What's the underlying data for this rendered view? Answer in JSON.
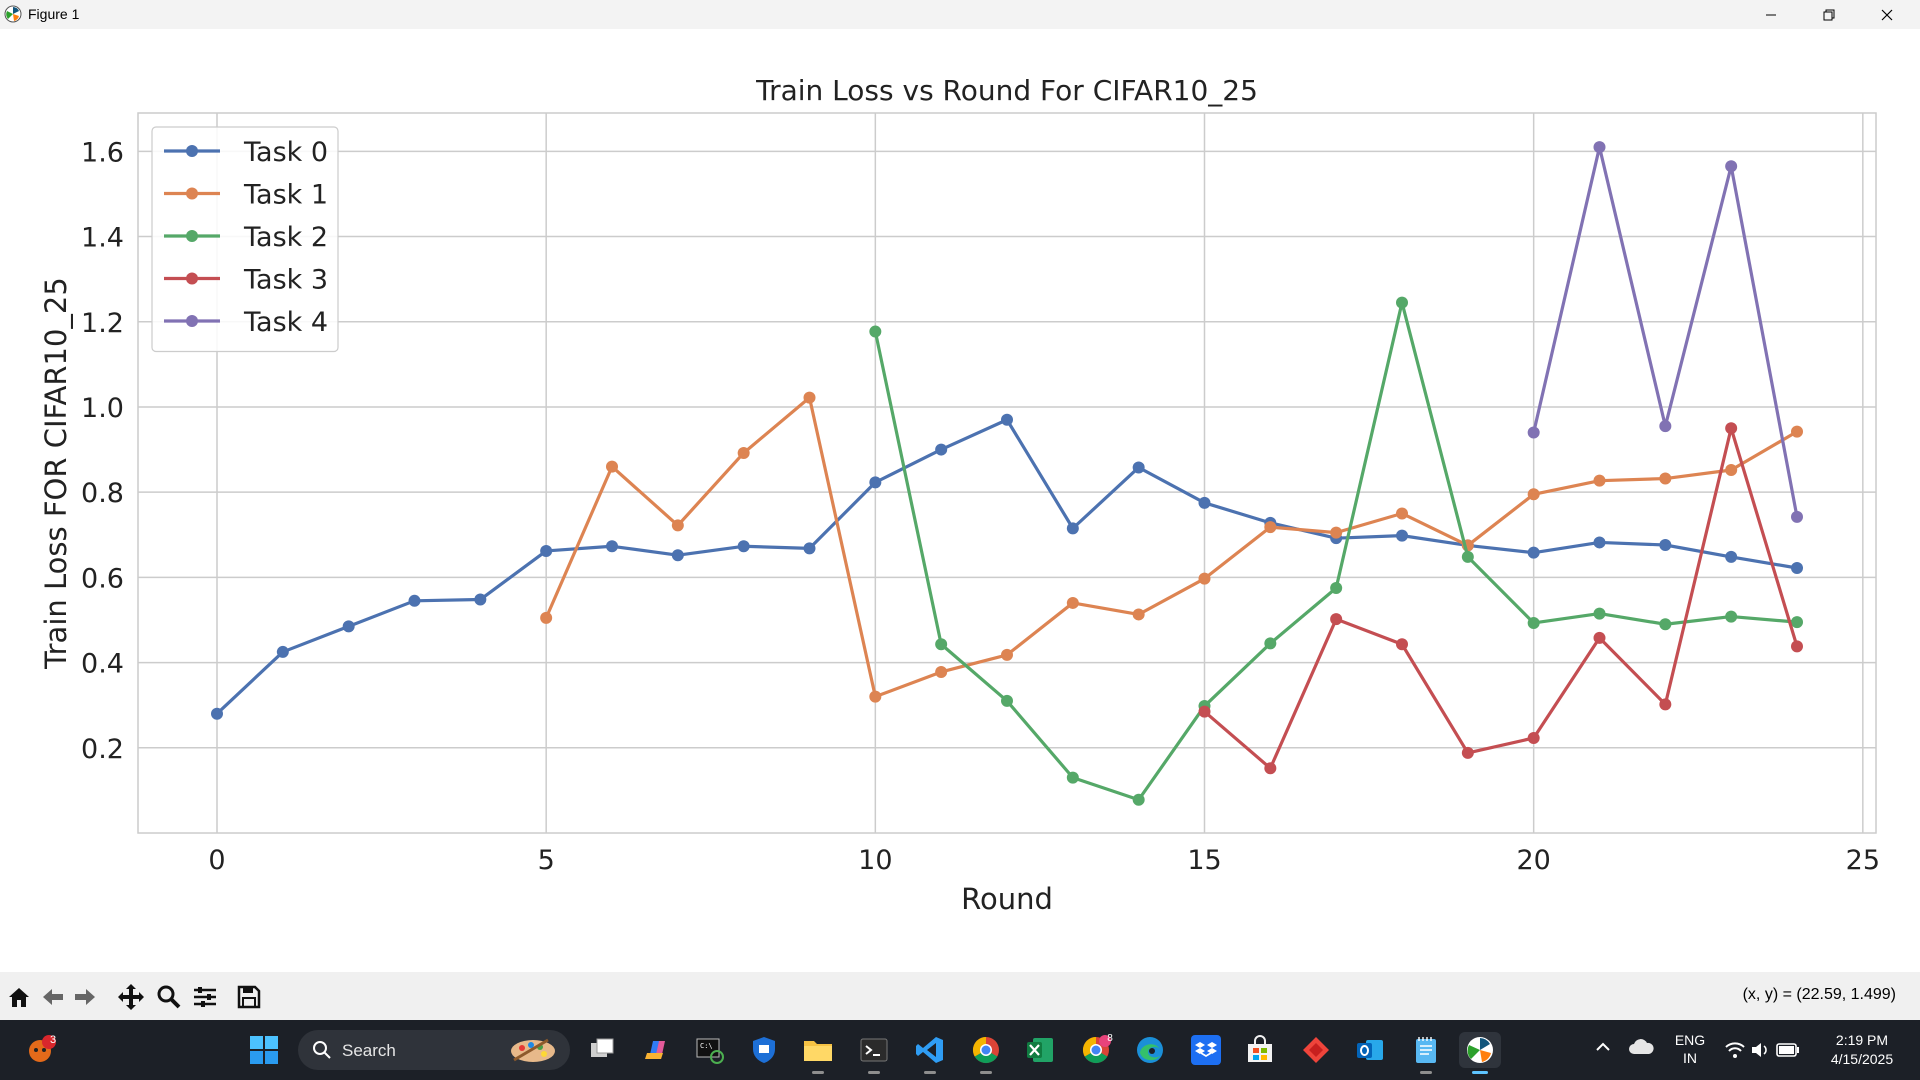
{
  "window": {
    "title": "Figure 1",
    "icon": "matplotlib-icon"
  },
  "chart_data": {
    "type": "line",
    "title": "Train Loss vs Round For CIFAR10_25",
    "xlabel": "Round",
    "ylabel": "Train Loss FOR CIFAR10_25",
    "xlim": [
      -1.2,
      25.2
    ],
    "ylim": [
      0.0,
      1.69
    ],
    "xticks": [
      0,
      5,
      10,
      15,
      20,
      25
    ],
    "yticks": [
      0.2,
      0.4,
      0.6,
      0.8,
      1.0,
      1.2,
      1.4,
      1.6
    ],
    "ytick_labels": [
      "0.2",
      "0.4",
      "0.6",
      "0.8",
      "1.0",
      "1.2",
      "1.4",
      "1.6"
    ],
    "grid": true,
    "legend_position": "top-left",
    "series": [
      {
        "name": "Task 0",
        "color": "#4c72b0",
        "x": [
          0,
          1,
          2,
          3,
          4,
          5,
          6,
          7,
          8,
          9,
          10,
          11,
          12,
          13,
          14,
          15,
          16,
          17,
          18,
          19,
          20,
          21,
          22,
          23,
          24
        ],
        "y": [
          0.28,
          0.425,
          0.485,
          0.545,
          0.548,
          0.662,
          0.673,
          0.652,
          0.673,
          0.668,
          0.823,
          0.9,
          0.97,
          0.715,
          0.858,
          0.775,
          0.728,
          0.692,
          0.698,
          0.675,
          0.658,
          0.682,
          0.676,
          0.648,
          0.622
        ]
      },
      {
        "name": "Task 1",
        "color": "#dd8452",
        "x": [
          5,
          6,
          7,
          8,
          9,
          10,
          11,
          12,
          13,
          14,
          15,
          16,
          17,
          18,
          19,
          20,
          21,
          22,
          23,
          24
        ],
        "y": [
          0.505,
          0.86,
          0.722,
          0.892,
          1.022,
          0.32,
          0.378,
          0.418,
          0.54,
          0.513,
          0.597,
          0.718,
          0.705,
          0.75,
          0.675,
          0.795,
          0.827,
          0.832,
          0.852,
          0.942
        ]
      },
      {
        "name": "Task 2",
        "color": "#55a868",
        "x": [
          10,
          11,
          12,
          13,
          14,
          15,
          16,
          17,
          18,
          19,
          20,
          21,
          22,
          23,
          24
        ],
        "y": [
          1.177,
          0.443,
          0.31,
          0.13,
          0.078,
          0.298,
          0.445,
          0.575,
          1.245,
          0.648,
          0.493,
          0.515,
          0.49,
          0.508,
          0.495
        ]
      },
      {
        "name": "Task 3",
        "color": "#c44e52",
        "x": [
          15,
          16,
          17,
          18,
          19,
          20,
          21,
          22,
          23,
          24
        ],
        "y": [
          0.285,
          0.152,
          0.502,
          0.443,
          0.188,
          0.223,
          0.458,
          0.302,
          0.95,
          0.438
        ]
      },
      {
        "name": "Task 4",
        "color": "#8172b3",
        "x": [
          20,
          21,
          22,
          23,
          24
        ],
        "y": [
          0.94,
          1.61,
          0.955,
          1.565,
          0.742
        ]
      }
    ]
  },
  "toolbar": {
    "buttons": [
      "home-icon",
      "back-icon",
      "forward-icon",
      "pan-icon",
      "zoom-icon",
      "configure-icon",
      "save-icon"
    ],
    "coords": "(x, y) = (22.59, 1.499)"
  },
  "taskbar": {
    "notification_badge": "3",
    "search_label": "Search",
    "chrome_badge": "8",
    "lang": "ENG",
    "region": "IN",
    "time": "2:19 PM",
    "date": "4/15/2025"
  }
}
